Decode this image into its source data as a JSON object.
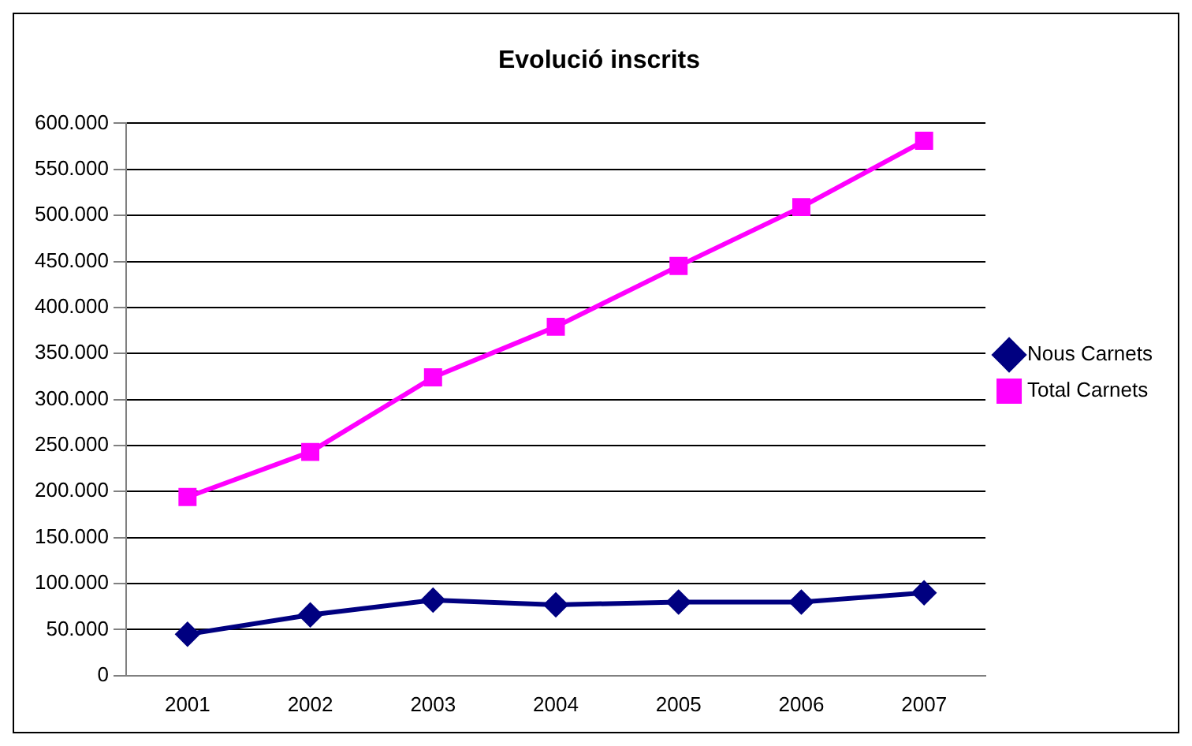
{
  "chart_data": {
    "type": "line",
    "title": "Evolució inscrits",
    "categories": [
      "2001",
      "2002",
      "2003",
      "2004",
      "2005",
      "2006",
      "2007"
    ],
    "series": [
      {
        "name": "Nous Carnets",
        "color": "#000080",
        "marker": "diamond",
        "values": [
          45000,
          66000,
          82000,
          77000,
          80000,
          80000,
          90000
        ]
      },
      {
        "name": "Total Carnets",
        "color": "#ff00ff",
        "marker": "square",
        "values": [
          194000,
          243000,
          324000,
          379000,
          445000,
          509000,
          581000
        ]
      }
    ],
    "ylim": [
      0,
      600000
    ],
    "yticks": [
      {
        "value": 0,
        "label": "0"
      },
      {
        "value": 50000,
        "label": "50.000"
      },
      {
        "value": 100000,
        "label": "100.000"
      },
      {
        "value": 150000,
        "label": "150.000"
      },
      {
        "value": 200000,
        "label": "200.000"
      },
      {
        "value": 250000,
        "label": "250.000"
      },
      {
        "value": 300000,
        "label": "300.000"
      },
      {
        "value": 350000,
        "label": "350.000"
      },
      {
        "value": 400000,
        "label": "400.000"
      },
      {
        "value": 450000,
        "label": "450.000"
      },
      {
        "value": 500000,
        "label": "500.000"
      },
      {
        "value": 550000,
        "label": "550.000"
      },
      {
        "value": 600000,
        "label": "600.000"
      }
    ],
    "grid": "y",
    "legend": "right",
    "line_style": "solid"
  }
}
